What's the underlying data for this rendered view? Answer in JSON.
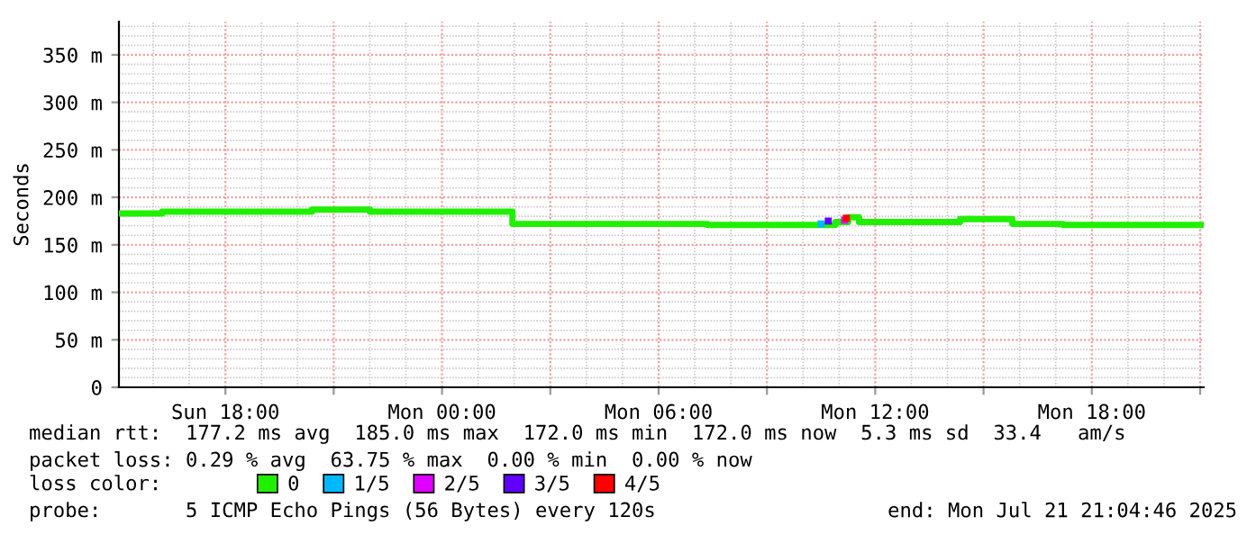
{
  "chart_data": {
    "type": "step",
    "ylabel": "Seconds",
    "x": [
      "2025-07-20T15:04",
      "2025-07-20T16:15",
      "2025-07-20T20:24",
      "2025-07-20T22:00",
      "2025-07-21T01:57",
      "2025-07-21T07:21",
      "2025-07-21T10:54",
      "2025-07-21T11:15",
      "2025-07-21T11:33",
      "2025-07-21T14:21",
      "2025-07-21T15:48",
      "2025-07-21T17:12",
      "2025-07-21T21:03"
    ],
    "series": [
      {
        "name": "0",
        "color": "#20f000",
        "values": [
          183,
          185,
          187,
          185,
          172,
          171,
          174,
          179,
          174,
          177,
          172,
          171,
          171
        ]
      },
      {
        "name": "1/5",
        "type": "scatter",
        "color": "#00b8ff",
        "x": [
          "2025-07-21T10:30"
        ],
        "values": [
          172
        ]
      },
      {
        "name": "2/5",
        "type": "scatter",
        "color": "#e000ff",
        "x": [
          "2025-07-21T11:09"
        ],
        "values": [
          176
        ]
      },
      {
        "name": "3/5",
        "type": "scatter",
        "color": "#6000ff",
        "x": [
          "2025-07-21T10:42"
        ],
        "values": [
          175
        ]
      },
      {
        "name": "4/5",
        "type": "scatter",
        "color": "#ff0000",
        "x": [
          "2025-07-21T11:12"
        ],
        "values": [
          178
        ]
      }
    ],
    "legend_title": "loss color:",
    "legend": "bottom",
    "grid": true,
    "xlim": [
      "2025-07-20T15:03",
      "2025-07-21T21:06"
    ],
    "xticks": [
      {
        "value": "2025-07-20T18:00",
        "label": "Sun 18:00"
      },
      {
        "value": "2025-07-20T21:00",
        "label": null
      },
      {
        "value": "2025-07-21T00:00",
        "label": "Mon 00:00"
      },
      {
        "value": "2025-07-21T03:00",
        "label": null
      },
      {
        "value": "2025-07-21T06:00",
        "label": "Mon 06:00"
      },
      {
        "value": "2025-07-21T09:00",
        "label": null
      },
      {
        "value": "2025-07-21T12:00",
        "label": "Mon 12:00"
      },
      {
        "value": "2025-07-21T15:00",
        "label": null
      },
      {
        "value": "2025-07-21T18:00",
        "label": "Mon 18:00"
      },
      {
        "value": "2025-07-21T21:00",
        "label": null
      }
    ],
    "ylim": [
      0,
      385
    ],
    "yticks": [
      0,
      {
        "value": 50,
        "label": "50 m"
      },
      {
        "value": 100,
        "label": "100 m"
      },
      {
        "value": 150,
        "label": "150 m"
      },
      {
        "value": 200,
        "label": "200 m"
      },
      {
        "value": 250,
        "label": "250 m"
      },
      {
        "value": 300,
        "label": "300 m"
      },
      {
        "value": 350,
        "label": "350 m"
      }
    ],
    "annotations": [
      "median rtt:  177.2 ms avg  185.0 ms max  172.0 ms min  172.0 ms now  5.3 ms sd  33.4   am/s",
      "packet loss: 0.29 % avg  63.75 % max  0.00 % min  0.00 % now",
      "probe:       5 ICMP Echo Pings (56 Bytes) every 120s",
      "end: Mon Jul 21 21:04:46 2025"
    ]
  }
}
